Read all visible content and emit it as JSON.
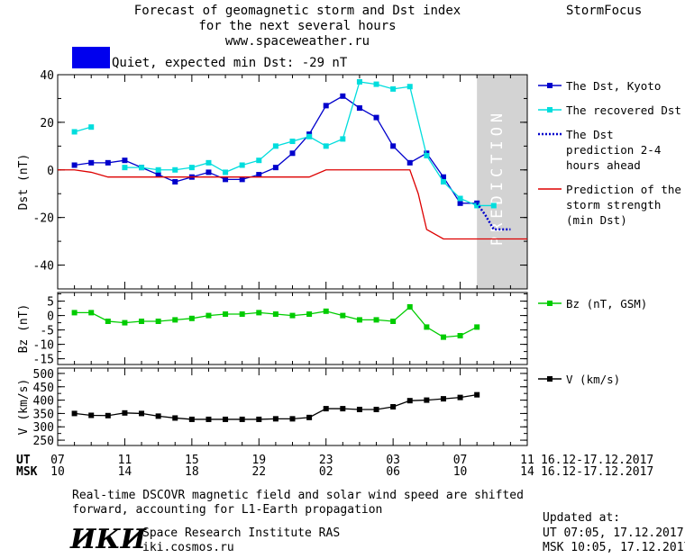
{
  "header": {
    "title_line1": "Forecast of geomagnetic storm and Dst index",
    "title_line2": "for the next several hours",
    "url": "www.spaceweather.ru",
    "brand": "StormFocus",
    "status_text": "Quiet, expected min Dst: -29 nT",
    "status_color": "#0000ee"
  },
  "axes": {
    "ut_label": "UT",
    "msk_label": "MSK",
    "ut_ticks": [
      "07",
      "11",
      "15",
      "19",
      "23",
      "03",
      "07",
      "11"
    ],
    "msk_ticks": [
      "10",
      "14",
      "18",
      "22",
      "02",
      "06",
      "10",
      "14"
    ],
    "ut_range": "16.12-17.12.2017",
    "msk_range": "16.12-17.12.2017"
  },
  "footer": {
    "note_line1": "Real-time DSCOVR magnetic field and solar wind speed are shifted",
    "note_line2": "forward, accounting for L1-Earth propagation",
    "institute": "Space Research Institute RAS",
    "institute_url": "iki.cosmos.ru",
    "logo_text": "ИКИ",
    "updated_label": "Updated at:",
    "updated_ut": "UT  07:05, 17.12.2017",
    "updated_msk": "MSK 10:05, 17.12.2017"
  },
  "chart_data": [
    {
      "type": "line",
      "ylabel": "Dst (nT)",
      "ylim": [
        -50,
        40
      ],
      "yticks": [
        -40,
        -20,
        0,
        20,
        40
      ],
      "xlim": [
        7,
        35
      ],
      "prediction_band": {
        "start": 32,
        "end": 35,
        "label": "PREDICTION",
        "color": "#d3d3d3"
      },
      "series": [
        {
          "name": "The Dst, Kyoto",
          "color": "#0000cc",
          "marker": "square",
          "x": [
            8,
            9,
            10,
            11,
            12,
            13,
            14,
            15,
            16,
            17,
            18,
            19,
            20,
            21,
            22,
            23,
            24,
            25,
            26,
            27,
            28,
            29,
            30,
            31,
            32
          ],
          "y": [
            2,
            3,
            3,
            4,
            1,
            -2,
            -5,
            -3,
            -1,
            -4,
            -4,
            -2,
            1,
            7,
            15,
            27,
            31,
            26,
            22,
            10,
            3,
            7,
            -3,
            -14,
            -14
          ]
        },
        {
          "name": "The recovered Dst",
          "color": "#00dddd",
          "marker": "square",
          "x": [
            8,
            9
          ],
          "y": [
            16,
            18
          ],
          "x2": [
            11,
            12,
            13,
            14,
            15,
            16,
            17,
            18,
            19,
            20,
            21,
            22,
            23,
            24,
            25,
            26,
            27,
            28,
            29,
            30,
            31,
            32,
            33
          ],
          "y2": [
            1,
            1,
            0,
            0,
            1,
            3,
            -1,
            2,
            4,
            10,
            12,
            14,
            10,
            13,
            37,
            36,
            34,
            35,
            6,
            -5,
            -12,
            -15,
            -15
          ]
        },
        {
          "name": "The Dst prediction 2-4 hours ahead",
          "color": "#0000cc",
          "dash": "dotted",
          "x": [
            32,
            32.5,
            33,
            34
          ],
          "y": [
            -14,
            -19,
            -25,
            -25
          ]
        },
        {
          "name": "Prediction of the storm strength (min Dst)",
          "color": "#dd0000",
          "x": [
            7,
            8,
            9,
            10,
            11,
            12,
            13,
            14,
            15,
            16,
            17,
            18,
            19,
            20,
            21,
            22,
            23,
            24,
            25,
            26,
            27,
            28,
            28.5,
            29,
            30,
            35
          ],
          "y": [
            0,
            0,
            -1,
            -3,
            -3,
            -3,
            -3,
            -3,
            -3,
            -3,
            -3,
            -3,
            -3,
            -3,
            -3,
            -3,
            0,
            0,
            0,
            0,
            0,
            0,
            -10,
            -25,
            -29,
            -29
          ]
        }
      ]
    },
    {
      "type": "line",
      "ylabel": "Bz (nT)",
      "ylim": [
        -17,
        8
      ],
      "yticks": [
        -15,
        -10,
        -5,
        0,
        5
      ],
      "xlim": [
        7,
        35
      ],
      "series": [
        {
          "name": "Bz (nT, GSM)",
          "color": "#00cc00",
          "marker": "square",
          "x": [
            8,
            9,
            10,
            11,
            12,
            13,
            14,
            15,
            16,
            17,
            18,
            19,
            20,
            21,
            22,
            23,
            24,
            25,
            26,
            27,
            28,
            29,
            30,
            31,
            32
          ],
          "y": [
            1,
            1,
            -2,
            -2.5,
            -2,
            -2,
            -1.5,
            -1,
            0,
            0.5,
            0.5,
            1,
            0.5,
            0,
            0.5,
            1.5,
            0,
            -1.5,
            -1.5,
            -2,
            3,
            -4,
            -7.5,
            -7,
            -4
          ]
        }
      ]
    },
    {
      "type": "line",
      "ylabel": "V (km/s)",
      "ylim": [
        230,
        520
      ],
      "yticks": [
        250,
        300,
        350,
        400,
        450,
        500
      ],
      "xlim": [
        7,
        35
      ],
      "series": [
        {
          "name": "V (km/s)",
          "color": "#000000",
          "marker": "square",
          "x": [
            8,
            9,
            10,
            11,
            12,
            13,
            14,
            15,
            16,
            17,
            18,
            19,
            20,
            21,
            22,
            23,
            24,
            25,
            26,
            27,
            28,
            29,
            30,
            31,
            32
          ],
          "y": [
            350,
            343,
            342,
            352,
            350,
            340,
            333,
            328,
            328,
            328,
            328,
            328,
            330,
            330,
            335,
            368,
            368,
            365,
            365,
            375,
            398,
            400,
            405,
            410,
            420
          ]
        }
      ]
    }
  ]
}
